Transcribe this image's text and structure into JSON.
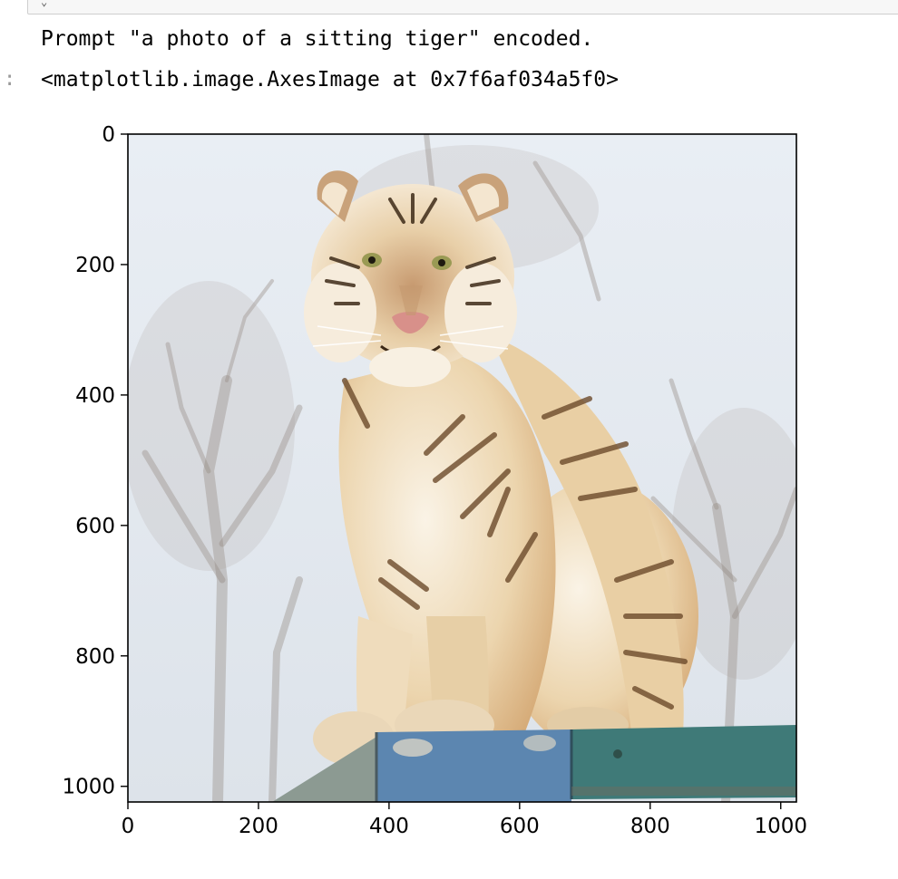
{
  "cell": {
    "stdout_line": "Prompt \"a photo of a sitting tiger\" encoded.",
    "output_prompt": ":",
    "repr_line": "<matplotlib.image.AxesImage at 0x7f6af034a5f0>"
  },
  "chart_data": {
    "type": "image",
    "title": "",
    "xlabel": "",
    "ylabel": "",
    "xlim": [
      0,
      1024
    ],
    "ylim": [
      1024,
      0
    ],
    "xticks": [
      0,
      200,
      400,
      600,
      800,
      1000
    ],
    "yticks": [
      0,
      200,
      400,
      600,
      800,
      1000
    ],
    "xtick_labels": [
      "0",
      "200",
      "400",
      "600",
      "800",
      "1000"
    ],
    "ytick_labels": [
      "0",
      "200",
      "400",
      "600",
      "800",
      "1000"
    ],
    "grid": false,
    "image_content": "photo-sitting-tiger-on-blue-board",
    "colors": {
      "sky": "#e6ecf2",
      "fur_light": "#f1e3c8",
      "fur_tan": "#d9b384",
      "stripes": "#6b4a2a",
      "board_blue": "#5c86b0",
      "board_teal": "#3f7a78"
    }
  }
}
